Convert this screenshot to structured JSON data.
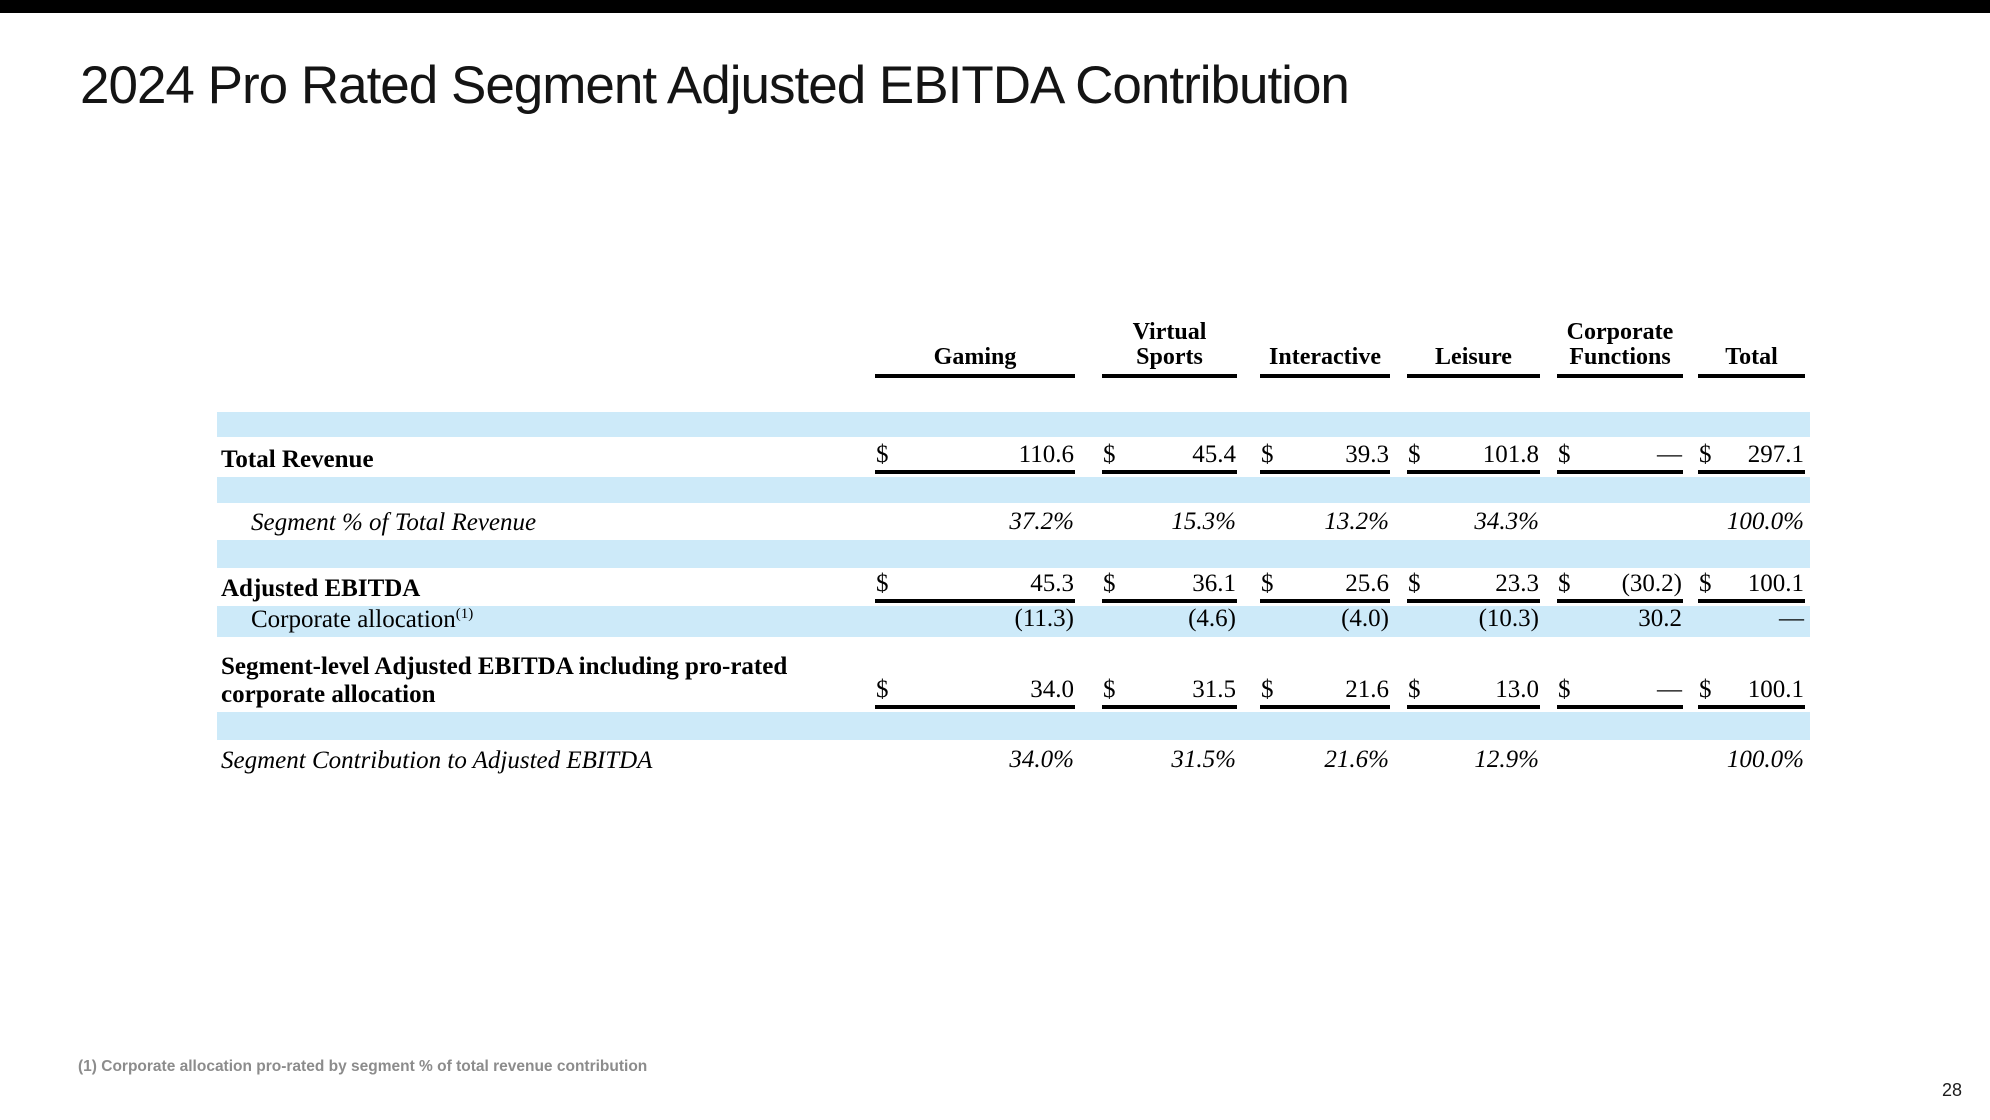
{
  "slide": {
    "title": "2024 Pro Rated Segment Adjusted EBITDA Contribution",
    "footnote": "(1) Corporate allocation pro-rated by segment % of total revenue contribution",
    "page_number": "28"
  },
  "colors": {
    "top_bar": "#000000",
    "band_blue": "#cdeaf9",
    "footnote_gray": "#8c8c8c",
    "table_line": "#000000"
  },
  "table": {
    "columns": [
      "Gaming",
      "Virtual Sports",
      "Interactive",
      "Leisure",
      "Corporate Functions",
      "Total"
    ],
    "rows": [
      {
        "label": "Total Revenue",
        "style": "bold",
        "indent": false,
        "underline": true,
        "highlight": false,
        "cells": [
          {
            "d": "$",
            "v": "110.6"
          },
          {
            "d": "$",
            "v": "45.4"
          },
          {
            "d": "$",
            "v": "39.3"
          },
          {
            "d": "$",
            "v": "101.8"
          },
          {
            "d": "$",
            "v": "—"
          },
          {
            "d": "$",
            "v": "297.1"
          }
        ]
      },
      {
        "label": "Segment % of Total Revenue",
        "style": "italic",
        "indent": true,
        "underline": false,
        "highlight": false,
        "cells": [
          {
            "d": "",
            "v": "37.2%"
          },
          {
            "d": "",
            "v": "15.3%"
          },
          {
            "d": "",
            "v": "13.2%"
          },
          {
            "d": "",
            "v": "34.3%"
          },
          {
            "d": "",
            "v": ""
          },
          {
            "d": "",
            "v": "100.0%"
          }
        ]
      },
      {
        "label": "Adjusted EBITDA",
        "style": "bold",
        "indent": false,
        "underline": true,
        "highlight": false,
        "cells": [
          {
            "d": "$",
            "v": "45.3"
          },
          {
            "d": "$",
            "v": "36.1"
          },
          {
            "d": "$",
            "v": "25.6"
          },
          {
            "d": "$",
            "v": "23.3"
          },
          {
            "d": "$",
            "v": "(30.2)"
          },
          {
            "d": "$",
            "v": "100.1"
          }
        ]
      },
      {
        "label": "Corporate allocation",
        "sup": "(1)",
        "style": "plain",
        "indent": true,
        "underline": false,
        "highlight": true,
        "cells": [
          {
            "d": "",
            "v": "(11.3)"
          },
          {
            "d": "",
            "v": "(4.6)"
          },
          {
            "d": "",
            "v": "(4.0)"
          },
          {
            "d": "",
            "v": "(10.3)"
          },
          {
            "d": "",
            "v": "30.2"
          },
          {
            "d": "",
            "v": "—"
          }
        ]
      },
      {
        "label": "Segment-level Adjusted EBITDA including pro-rated corporate allocation",
        "style": "bold",
        "indent": false,
        "underline": true,
        "highlight": false,
        "cells": [
          {
            "d": "$",
            "v": "34.0"
          },
          {
            "d": "$",
            "v": "31.5"
          },
          {
            "d": "$",
            "v": "21.6"
          },
          {
            "d": "$",
            "v": "13.0"
          },
          {
            "d": "$",
            "v": "—"
          },
          {
            "d": "$",
            "v": "100.1"
          }
        ]
      },
      {
        "label": "Segment Contribution to Adjusted EBITDA",
        "style": "italic",
        "indent": false,
        "underline": false,
        "highlight": false,
        "cells": [
          {
            "d": "",
            "v": "34.0%"
          },
          {
            "d": "",
            "v": "31.5%"
          },
          {
            "d": "",
            "v": "21.6%"
          },
          {
            "d": "",
            "v": "12.9%"
          },
          {
            "d": "",
            "v": ""
          },
          {
            "d": "",
            "v": "100.0%"
          }
        ]
      }
    ]
  }
}
